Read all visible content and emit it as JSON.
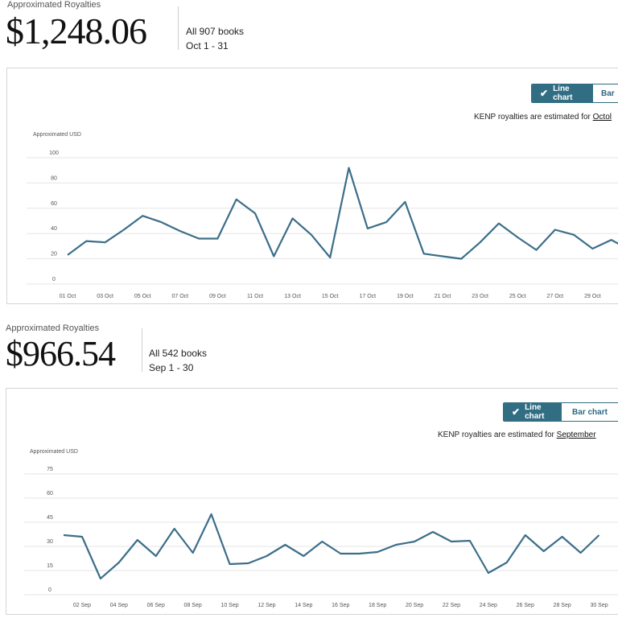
{
  "sections": [
    {
      "header": {
        "label": "Approximated Royalties",
        "amount": "$1,248.06",
        "books": "All 907 books",
        "range": "Oct 1 - 31"
      },
      "toggle": {
        "line": "Line chart",
        "bar": "Bar"
      },
      "note": {
        "prefix": "KENP royalties are estimated for ",
        "link": "Octol"
      },
      "chart_data": {
        "type": "line",
        "ylabel": "Approximated USD",
        "yticks": [
          0,
          20,
          40,
          60,
          80,
          100
        ],
        "ylim": [
          0,
          100
        ],
        "xtick_labels": [
          "01 Oct",
          "03 Oct",
          "05 Oct",
          "07 Oct",
          "09 Oct",
          "11 Oct",
          "13 Oct",
          "15 Oct",
          "17 Oct",
          "19 Oct",
          "21 Oct",
          "23 Oct",
          "25 Oct",
          "27 Oct",
          "29 Oct"
        ],
        "series": [
          {
            "color": "#3c6e89",
            "x": [
              1,
              2,
              3,
              4,
              5,
              6,
              7,
              8,
              9,
              10,
              11,
              12,
              13,
              14,
              15,
              16,
              17,
              18,
              19,
              20,
              21,
              22,
              23,
              24,
              25,
              26,
              27,
              28,
              29,
              30,
              31
            ],
            "values": [
              23,
              34,
              33,
              43,
              54,
              49,
              42,
              36,
              36,
              67,
              56,
              22,
              52,
              39,
              21,
              92,
              44,
              49,
              65,
              24,
              22,
              20,
              33,
              48,
              37,
              27,
              43,
              39,
              28,
              35,
              27
            ]
          }
        ]
      }
    },
    {
      "header": {
        "label": "Approximated Royalties",
        "amount": "$966.54",
        "books": "All 542 books",
        "range": "Sep 1 - 30"
      },
      "toggle": {
        "line": "Line chart",
        "bar": "Bar chart"
      },
      "note": {
        "prefix": "KENP royalties are estimated for ",
        "link": "September"
      },
      "chart_data": {
        "type": "line",
        "ylabel": "Approximated USD",
        "yticks": [
          0,
          15,
          30,
          45,
          60,
          75
        ],
        "ylim": [
          0,
          75
        ],
        "xtick_labels": [
          "02 Sep",
          "04 Sep",
          "06 Sep",
          "08 Sep",
          "10 Sep",
          "12 Sep",
          "14 Sep",
          "16 Sep",
          "18 Sep",
          "20 Sep",
          "22 Sep",
          "24 Sep",
          "26 Sep",
          "28 Sep",
          "30 Sep"
        ],
        "series": [
          {
            "color": "#3c6e89",
            "x": [
              1,
              2,
              3,
              4,
              5,
              6,
              7,
              8,
              9,
              10,
              11,
              12,
              13,
              14,
              15,
              16,
              17,
              18,
              19,
              20,
              21,
              22,
              23,
              24,
              25,
              26,
              27,
              28,
              29,
              30
            ],
            "values": [
              37,
              36,
              10,
              20,
              34,
              24,
              41,
              26,
              50,
              19,
              19.5,
              24,
              31,
              24,
              33,
              25.5,
              25.5,
              26.5,
              31,
              33,
              39,
              33,
              33.5,
              13.5,
              20,
              37,
              27,
              36,
              26,
              37
            ]
          }
        ]
      }
    }
  ]
}
